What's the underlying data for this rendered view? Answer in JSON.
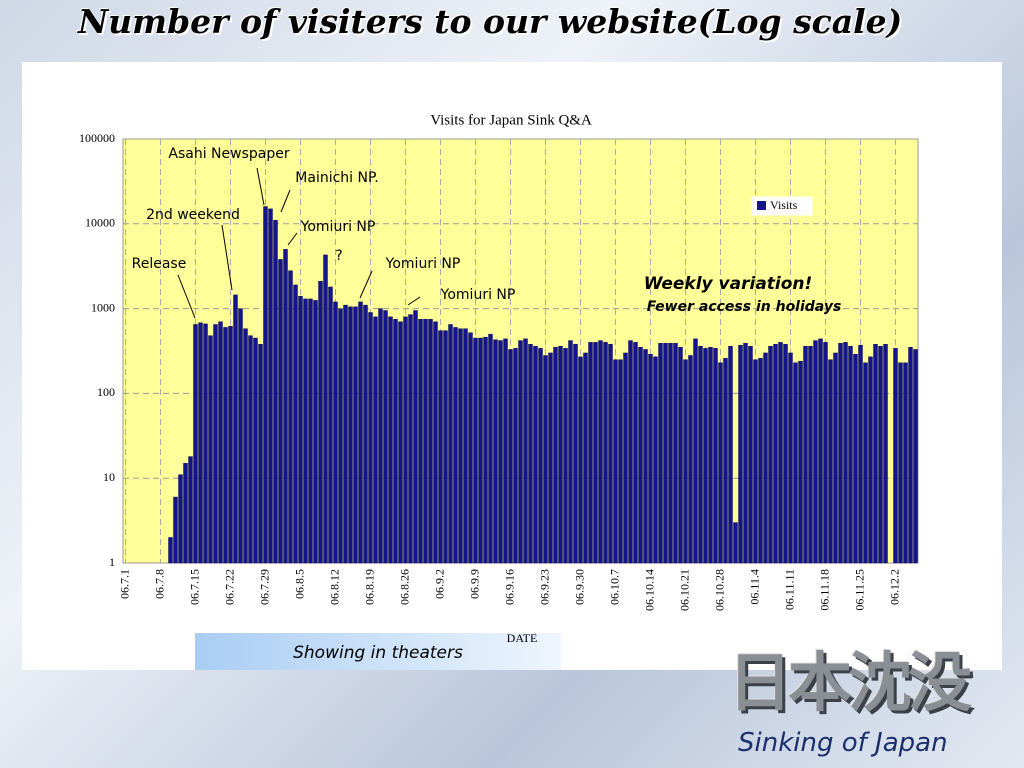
{
  "slide": {
    "title": "Number of visiters to our website(Log scale)",
    "logo_text": "日本沈没",
    "logo_caption": "Sinking of Japan"
  },
  "chart_data": {
    "type": "bar",
    "title": "Visits for Japan Sink Q&A",
    "x_label": "DATE",
    "log_scale": true,
    "grid": true,
    "legend_position": "upper right",
    "categories": [
      "06.7.1",
      null,
      null,
      null,
      null,
      null,
      null,
      "06.7.8",
      null,
      null,
      null,
      null,
      null,
      null,
      "06.7.15",
      null,
      null,
      null,
      null,
      null,
      null,
      "06.7.22",
      null,
      null,
      null,
      null,
      null,
      null,
      "06.7.29",
      null,
      null,
      null,
      null,
      null,
      null,
      "06.8.5",
      null,
      null,
      null,
      null,
      null,
      null,
      "06.8.12",
      null,
      null,
      null,
      null,
      null,
      null,
      "06.8.19",
      null,
      null,
      null,
      null,
      null,
      null,
      "06.8.26",
      null,
      null,
      null,
      null,
      null,
      null,
      "06.9.2",
      null,
      null,
      null,
      null,
      null,
      null,
      "06.9.9",
      null,
      null,
      null,
      null,
      null,
      null,
      "06.9.16",
      null,
      null,
      null,
      null,
      null,
      null,
      "06.9.23",
      null,
      null,
      null,
      null,
      null,
      null,
      "06.9.30",
      null,
      null,
      null,
      null,
      null,
      null,
      "06.10.7",
      null,
      null,
      null,
      null,
      null,
      null,
      "06.10.14",
      null,
      null,
      null,
      null,
      null,
      null,
      "06.10.21",
      null,
      null,
      null,
      null,
      null,
      null,
      "06.10.28",
      null,
      null,
      null,
      null,
      null,
      null,
      "06.11.4",
      null,
      null,
      null,
      null,
      null,
      null,
      "06.11.11",
      null,
      null,
      null,
      null,
      null,
      null,
      "06.11.18",
      null,
      null,
      null,
      null,
      null,
      null,
      "06.11.25",
      null,
      null,
      null,
      null,
      null,
      null,
      "06.12.2",
      null,
      null,
      null,
      null
    ],
    "series": [
      {
        "name": "Visits",
        "color": "#14148c",
        "values": [
          null,
          null,
          null,
          null,
          null,
          null,
          null,
          null,
          null,
          2,
          6,
          11,
          15,
          18,
          650,
          680,
          660,
          480,
          650,
          700,
          600,
          620,
          1450,
          1000,
          580,
          480,
          450,
          380,
          16000,
          15000,
          11000,
          3800,
          5000,
          2800,
          1900,
          1400,
          1300,
          1300,
          1250,
          2100,
          4300,
          1800,
          1200,
          1000,
          1100,
          1050,
          1050,
          1200,
          1100,
          900,
          800,
          1000,
          950,
          800,
          750,
          700,
          800,
          850,
          950,
          750,
          750,
          750,
          700,
          550,
          550,
          650,
          600,
          580,
          580,
          520,
          450,
          450,
          460,
          500,
          430,
          420,
          440,
          330,
          340,
          420,
          440,
          380,
          360,
          340,
          280,
          300,
          350,
          360,
          340,
          420,
          380,
          270,
          300,
          400,
          400,
          420,
          400,
          380,
          250,
          250,
          300,
          420,
          400,
          350,
          330,
          290,
          270,
          390,
          390,
          390,
          390,
          350,
          250,
          280,
          440,
          360,
          340,
          350,
          340,
          230,
          260,
          360,
          3,
          370,
          390,
          360,
          250,
          260,
          300,
          360,
          380,
          400,
          380,
          300,
          230,
          240,
          360,
          360,
          420,
          440,
          400,
          250,
          300,
          390,
          400,
          360,
          290,
          370,
          230,
          270,
          380,
          360,
          380,
          null,
          340,
          230,
          230,
          350,
          330
        ]
      }
    ],
    "ylim": [
      1,
      100000
    ],
    "yticks": [
      1,
      10,
      100,
      1000,
      10000,
      100000
    ],
    "annotations": [
      "Release",
      "2nd weekend",
      "Asahi Newspaper",
      "Mainichi NP.",
      "Yomiuri NP",
      "?",
      "Yomiuri NP",
      "Yomiuri NP",
      "Weekly variation!",
      "Fewer access in holidays",
      "Showing in theaters"
    ]
  }
}
